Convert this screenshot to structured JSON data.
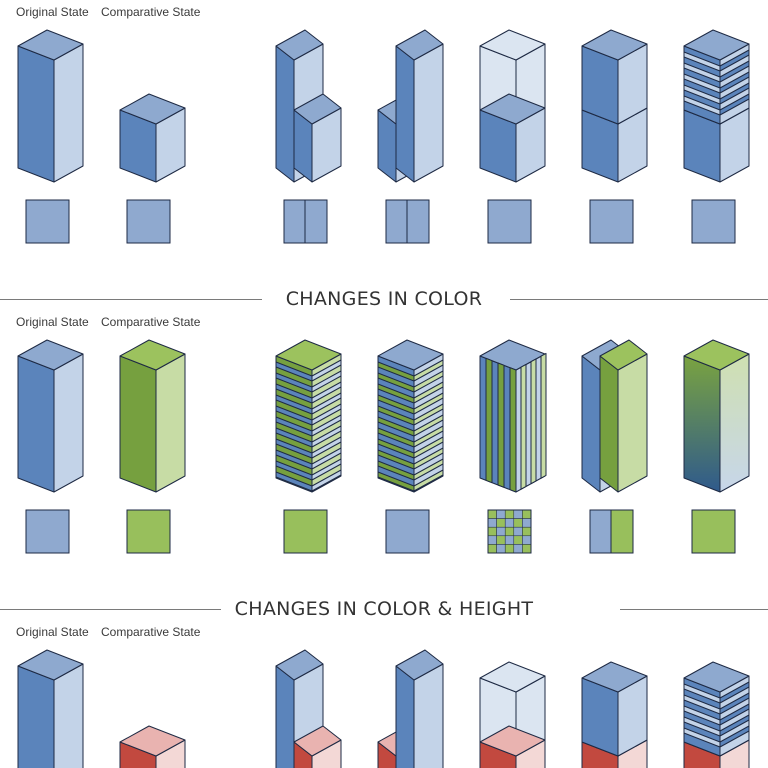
{
  "labels": {
    "original_state": "Original State",
    "comparative_state": "Comparative State"
  },
  "sections": [
    {
      "title": ""
    },
    {
      "title": "CHANGES IN COLOR"
    },
    {
      "title": "CHANGES IN COLOR & HEIGHT"
    }
  ],
  "colors": {
    "outline": "#1e2a44",
    "blue_front": "#5b84bb",
    "blue_side": "#c3d3e8",
    "blue_top": "#8ea9cf",
    "blue_plan": "#8fa9cf",
    "green_front": "#76a03f",
    "green_side": "#c7dca5",
    "green_top": "#9cc25e",
    "green_plan": "#98bf5c",
    "red_front": "#c2493f",
    "red_side": "#f3d8d6",
    "red_top": "#e9b3b0",
    "ghost": "#d5e0ef"
  }
}
